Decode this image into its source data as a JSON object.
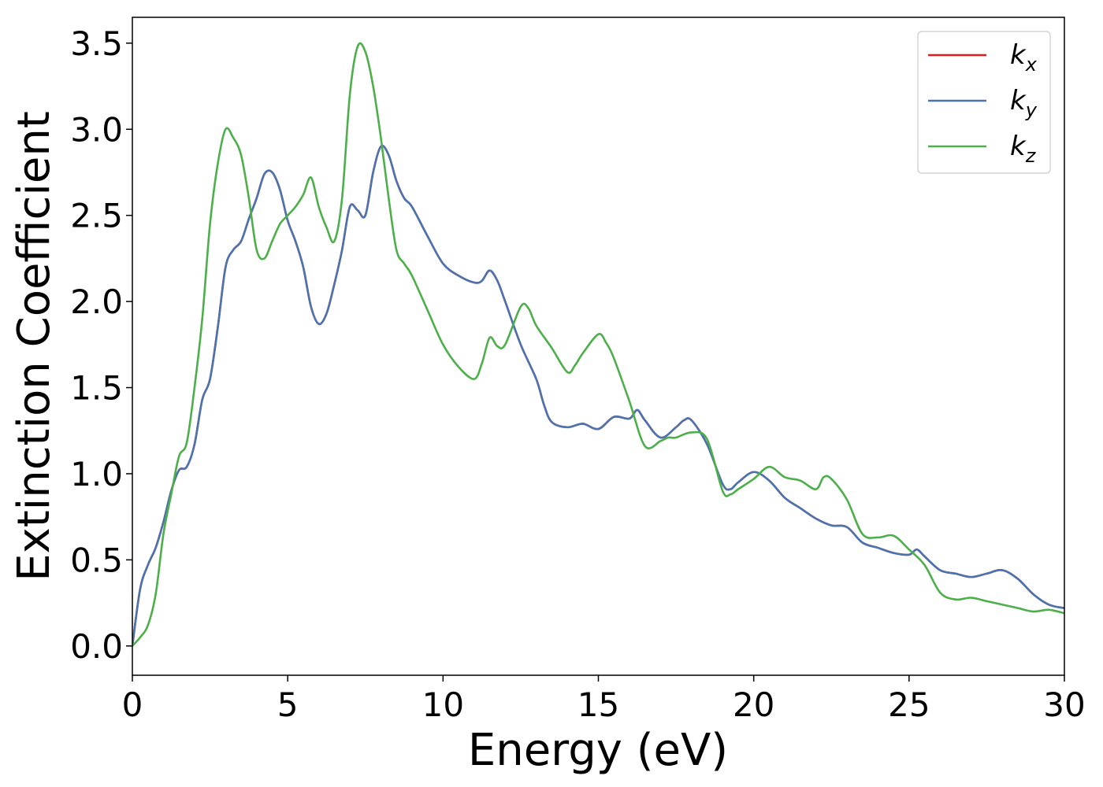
{
  "chart_data": {
    "type": "line",
    "title": "",
    "xlabel": "Energy (eV)",
    "ylabel": "Extinction Coefficient",
    "xlim": [
      0,
      30
    ],
    "ylim": [
      -0.17,
      3.65
    ],
    "xticks": [
      0,
      5,
      10,
      15,
      20,
      25,
      30
    ],
    "xtick_labels": [
      "0",
      "5",
      "10",
      "15",
      "20",
      "25",
      "30"
    ],
    "yticks": [
      0.0,
      0.5,
      1.0,
      1.5,
      2.0,
      2.5,
      3.0,
      3.5
    ],
    "ytick_labels": [
      "0.0",
      "0.5",
      "1.0",
      "1.5",
      "2.0",
      "2.5",
      "3.0",
      "3.5"
    ],
    "grid": false,
    "legend_position": "top-right",
    "colors": {
      "kx": "#e41a1c",
      "ky": "#4a74b0",
      "kz": "#4daf4a"
    },
    "series": [
      {
        "name": "kx",
        "legend_base": "k",
        "legend_sub": "x",
        "color": "#e41a1c",
        "x": [
          0,
          0.25,
          0.5,
          0.75,
          1.0,
          1.25,
          1.5,
          1.75,
          2.0,
          2.25,
          2.5,
          2.75,
          3.0,
          3.25,
          3.5,
          3.75,
          4.0,
          4.25,
          4.5,
          4.75,
          5.0,
          5.25,
          5.5,
          5.75,
          6.0,
          6.25,
          6.5,
          6.75,
          7.0,
          7.25,
          7.5,
          7.75,
          8.0,
          8.25,
          8.5,
          8.75,
          9.0,
          9.5,
          10.0,
          10.5,
          11.0,
          11.25,
          11.5,
          11.75,
          12.0,
          12.5,
          13.0,
          13.25,
          13.5,
          14.0,
          14.5,
          15.0,
          15.5,
          16.0,
          16.25,
          16.5,
          17.0,
          17.5,
          17.75,
          18.0,
          18.5,
          19.0,
          19.25,
          19.5,
          20.0,
          20.5,
          21.0,
          21.5,
          22.0,
          22.5,
          23.0,
          23.5,
          24.0,
          24.5,
          25.0,
          25.25,
          25.5,
          26.0,
          26.5,
          27.0,
          27.5,
          28.0,
          28.5,
          29.0,
          29.5,
          30.0
        ],
        "values": [
          0.0,
          0.33,
          0.47,
          0.57,
          0.72,
          0.9,
          1.02,
          1.04,
          1.17,
          1.43,
          1.55,
          1.85,
          2.2,
          2.3,
          2.35,
          2.48,
          2.6,
          2.74,
          2.75,
          2.65,
          2.47,
          2.35,
          2.2,
          1.97,
          1.87,
          1.93,
          2.1,
          2.3,
          2.55,
          2.53,
          2.5,
          2.75,
          2.9,
          2.85,
          2.7,
          2.6,
          2.55,
          2.38,
          2.22,
          2.15,
          2.11,
          2.12,
          2.18,
          2.12,
          2.0,
          1.75,
          1.55,
          1.4,
          1.3,
          1.27,
          1.29,
          1.26,
          1.33,
          1.32,
          1.37,
          1.31,
          1.21,
          1.27,
          1.31,
          1.31,
          1.17,
          0.94,
          0.91,
          0.95,
          1.01,
          0.96,
          0.86,
          0.8,
          0.74,
          0.7,
          0.69,
          0.6,
          0.57,
          0.54,
          0.53,
          0.56,
          0.52,
          0.44,
          0.42,
          0.4,
          0.42,
          0.44,
          0.39,
          0.3,
          0.24,
          0.22
        ]
      },
      {
        "name": "ky",
        "legend_base": "k",
        "legend_sub": "y",
        "color": "#4a74b0",
        "x": [
          0,
          0.25,
          0.5,
          0.75,
          1.0,
          1.25,
          1.5,
          1.75,
          2.0,
          2.25,
          2.5,
          2.75,
          3.0,
          3.25,
          3.5,
          3.75,
          4.0,
          4.25,
          4.5,
          4.75,
          5.0,
          5.25,
          5.5,
          5.75,
          6.0,
          6.25,
          6.5,
          6.75,
          7.0,
          7.25,
          7.5,
          7.75,
          8.0,
          8.25,
          8.5,
          8.75,
          9.0,
          9.5,
          10.0,
          10.5,
          11.0,
          11.25,
          11.5,
          11.75,
          12.0,
          12.5,
          13.0,
          13.25,
          13.5,
          14.0,
          14.5,
          15.0,
          15.5,
          16.0,
          16.25,
          16.5,
          17.0,
          17.5,
          17.75,
          18.0,
          18.5,
          19.0,
          19.25,
          19.5,
          20.0,
          20.5,
          21.0,
          21.5,
          22.0,
          22.5,
          23.0,
          23.5,
          24.0,
          24.5,
          25.0,
          25.25,
          25.5,
          26.0,
          26.5,
          27.0,
          27.5,
          28.0,
          28.5,
          29.0,
          29.5,
          30.0
        ],
        "values": [
          0.0,
          0.33,
          0.47,
          0.57,
          0.72,
          0.9,
          1.02,
          1.04,
          1.17,
          1.43,
          1.55,
          1.85,
          2.2,
          2.3,
          2.35,
          2.48,
          2.6,
          2.74,
          2.75,
          2.65,
          2.47,
          2.35,
          2.2,
          1.97,
          1.87,
          1.93,
          2.1,
          2.3,
          2.55,
          2.53,
          2.5,
          2.75,
          2.9,
          2.85,
          2.7,
          2.6,
          2.55,
          2.38,
          2.22,
          2.15,
          2.11,
          2.12,
          2.18,
          2.12,
          2.0,
          1.75,
          1.55,
          1.4,
          1.3,
          1.27,
          1.29,
          1.26,
          1.33,
          1.32,
          1.37,
          1.31,
          1.21,
          1.27,
          1.31,
          1.31,
          1.17,
          0.94,
          0.91,
          0.95,
          1.01,
          0.96,
          0.86,
          0.8,
          0.74,
          0.7,
          0.69,
          0.6,
          0.57,
          0.54,
          0.53,
          0.56,
          0.52,
          0.44,
          0.42,
          0.4,
          0.42,
          0.44,
          0.39,
          0.3,
          0.24,
          0.22
        ]
      },
      {
        "name": "kz",
        "legend_base": "k",
        "legend_sub": "z",
        "color": "#4daf4a",
        "x": [
          0,
          0.25,
          0.5,
          0.75,
          1.0,
          1.25,
          1.5,
          1.75,
          2.0,
          2.25,
          2.5,
          2.75,
          3.0,
          3.25,
          3.5,
          3.75,
          4.0,
          4.25,
          4.5,
          4.75,
          5.0,
          5.25,
          5.5,
          5.75,
          6.0,
          6.25,
          6.5,
          6.75,
          7.0,
          7.25,
          7.5,
          7.75,
          8.0,
          8.25,
          8.5,
          8.75,
          9.0,
          9.5,
          10.0,
          10.5,
          11.0,
          11.25,
          11.5,
          11.75,
          12.0,
          12.5,
          12.75,
          13.0,
          13.5,
          14.0,
          14.25,
          14.5,
          15.0,
          15.25,
          15.5,
          16.0,
          16.5,
          17.0,
          17.25,
          17.5,
          18.0,
          18.5,
          19.0,
          19.25,
          19.5,
          20.0,
          20.5,
          21.0,
          21.5,
          22.0,
          22.25,
          22.5,
          23.0,
          23.5,
          24.0,
          24.5,
          25.0,
          25.5,
          26.0,
          26.5,
          27.0,
          27.5,
          28.0,
          28.5,
          29.0,
          29.5,
          30.0
        ],
        "values": [
          0.0,
          0.05,
          0.12,
          0.3,
          0.65,
          0.88,
          1.1,
          1.18,
          1.5,
          1.9,
          2.45,
          2.8,
          3.0,
          2.95,
          2.85,
          2.6,
          2.3,
          2.25,
          2.35,
          2.45,
          2.5,
          2.55,
          2.62,
          2.72,
          2.55,
          2.43,
          2.35,
          2.6,
          3.2,
          3.48,
          3.45,
          3.25,
          2.95,
          2.6,
          2.3,
          2.22,
          2.15,
          1.95,
          1.75,
          1.62,
          1.55,
          1.64,
          1.79,
          1.74,
          1.75,
          1.97,
          1.96,
          1.86,
          1.73,
          1.59,
          1.63,
          1.7,
          1.81,
          1.76,
          1.67,
          1.42,
          1.16,
          1.19,
          1.21,
          1.21,
          1.24,
          1.2,
          0.9,
          0.88,
          0.91,
          0.97,
          1.04,
          0.98,
          0.96,
          0.91,
          0.98,
          0.97,
          0.85,
          0.65,
          0.63,
          0.64,
          0.56,
          0.47,
          0.31,
          0.27,
          0.28,
          0.26,
          0.24,
          0.22,
          0.2,
          0.21,
          0.19
        ]
      }
    ]
  }
}
